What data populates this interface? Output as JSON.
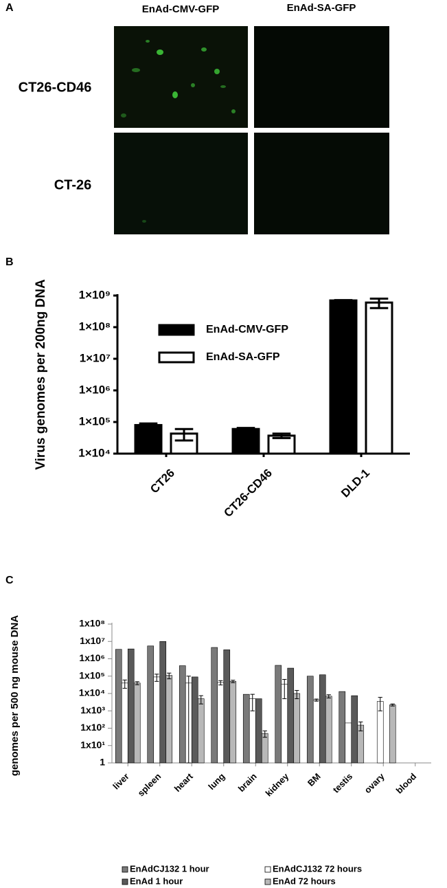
{
  "panel_a": {
    "label": "A",
    "columns": [
      "EnAd-CMV-GFP",
      "EnAd-SA-GFP"
    ],
    "rows": [
      "CT26-CD46",
      "CT-26"
    ]
  },
  "chart_data": [
    {
      "type": "bar",
      "panel": "B",
      "ylabel": "Virus genomes per 200ng DNA",
      "log_scale": true,
      "categories": [
        "CT26",
        "CT26-CD46",
        "DLD-1"
      ],
      "series": [
        {
          "name": "EnAd-CMV-GFP",
          "color": "#000000",
          "values": [
            80000,
            60000,
            700000000
          ],
          "errors": [
            10000,
            5000,
            20000000
          ]
        },
        {
          "name": "EnAd-SA-GFP",
          "color": "#ffffff",
          "values": [
            43000,
            37000,
            600000000
          ],
          "errors": [
            17000,
            6000,
            200000000
          ]
        }
      ],
      "ylim": [
        10000,
        1000000000
      ],
      "yticks": [
        {
          "value": 10000,
          "label": "1×10⁴"
        },
        {
          "value": 100000,
          "label": "1×10⁵"
        },
        {
          "value": 1000000,
          "label": "1×10⁶"
        },
        {
          "value": 10000000,
          "label": "1×10⁷"
        },
        {
          "value": 100000000,
          "label": "1×10⁸"
        },
        {
          "value": 1000000000,
          "label": "1×10⁹"
        }
      ]
    },
    {
      "type": "bar",
      "panel": "C",
      "ylabel": "genomes per 500 ng mouse DNA",
      "log_scale": true,
      "categories": [
        "liver",
        "spleen",
        "heart",
        "lung",
        "brain",
        "kidney",
        "BM",
        "testis",
        "ovary",
        "blood"
      ],
      "series": [
        {
          "name": "EnAdCJ132 1 hour",
          "color": "#7a7a7a",
          "values": [
            3500000,
            5500000,
            400000,
            4500000,
            9000,
            420000,
            100000,
            13000,
            null,
            null
          ],
          "errors": [
            null,
            null,
            null,
            null,
            null,
            null,
            null,
            null,
            null,
            null
          ]
        },
        {
          "name": "EnAdCJ132 72 hours",
          "color": "#ffffff",
          "values": [
            40000,
            90000,
            40000,
            43000,
            5000,
            35000,
            4200,
            200,
            3500,
            null
          ],
          "errors": [
            20000,
            40000,
            60000,
            12000,
            4000,
            30000,
            600,
            null,
            2500,
            null
          ]
        },
        {
          "name": "EnAd 1 hour",
          "color": "#5a5a5a",
          "values": [
            3700000,
            10000000,
            90000,
            3300000,
            5000,
            290000,
            120000,
            7500,
            null,
            null
          ],
          "errors": [
            null,
            null,
            null,
            null,
            null,
            null,
            null,
            null,
            null,
            null
          ]
        },
        {
          "name": "EnAd 72 hours",
          "color": "#b8b8b8",
          "values": [
            40000,
            110000,
            5000,
            50000,
            50,
            10000,
            7000,
            150,
            2200,
            null
          ],
          "errors": [
            8000,
            40000,
            2500,
            8000,
            20,
            5000,
            1500,
            80,
            300,
            null
          ]
        }
      ],
      "ylim": [
        1,
        100000000
      ],
      "yticks": [
        1,
        {
          "value": 10,
          "label": "1x10¹"
        },
        {
          "value": 100,
          "label": "1x10²"
        },
        {
          "value": 1000,
          "label": "1x10³"
        },
        {
          "value": 10000,
          "label": "1x10⁴"
        },
        {
          "value": 100000,
          "label": "1x10⁵"
        },
        {
          "value": 1000000,
          "label": "1x10⁶"
        },
        {
          "value": 10000000,
          "label": "1x10⁷"
        },
        {
          "value": 100000000,
          "label": "1x10⁸"
        }
      ]
    }
  ]
}
